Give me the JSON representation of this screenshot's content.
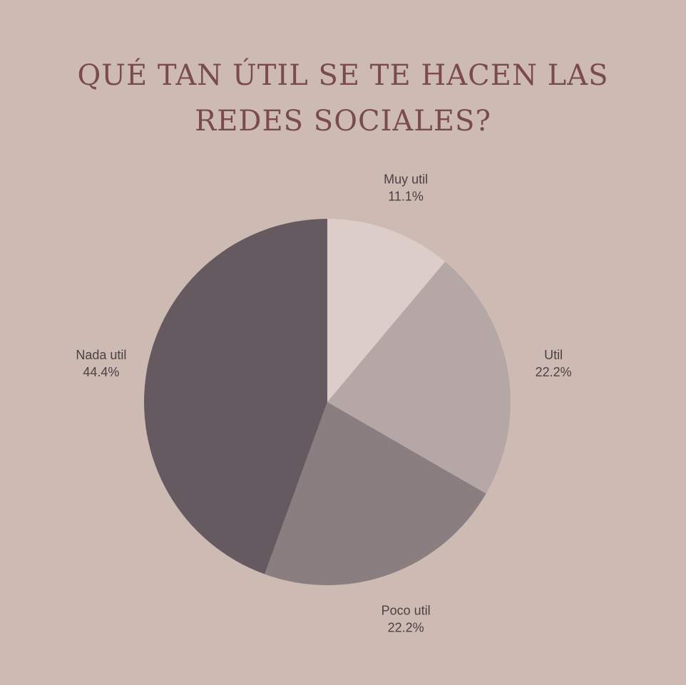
{
  "title_line1": "QUÉ TAN ÚTIL SE TE HACEN LAS",
  "title_line2": "REDES SOCIALES?",
  "chart_data": {
    "type": "pie",
    "title": "QUÉ TAN ÚTIL SE TE HACEN LAS REDES SOCIALES?",
    "slices": [
      {
        "label": "Muy util",
        "value": 11.1,
        "display": "11.1%",
        "color": "#dccdc8"
      },
      {
        "label": "Util",
        "value": 22.2,
        "display": "22.2%",
        "color": "#b4a7a6"
      },
      {
        "label": "Poco util",
        "value": 22.2,
        "display": "22.2%",
        "color": "#8a7e80"
      },
      {
        "label": "Nada util",
        "value": 44.4,
        "display": "44.4%",
        "color": "#655a60"
      }
    ],
    "start_angle": "12 o'clock",
    "direction": "clockwise",
    "legend": "none",
    "labels": "outside"
  }
}
